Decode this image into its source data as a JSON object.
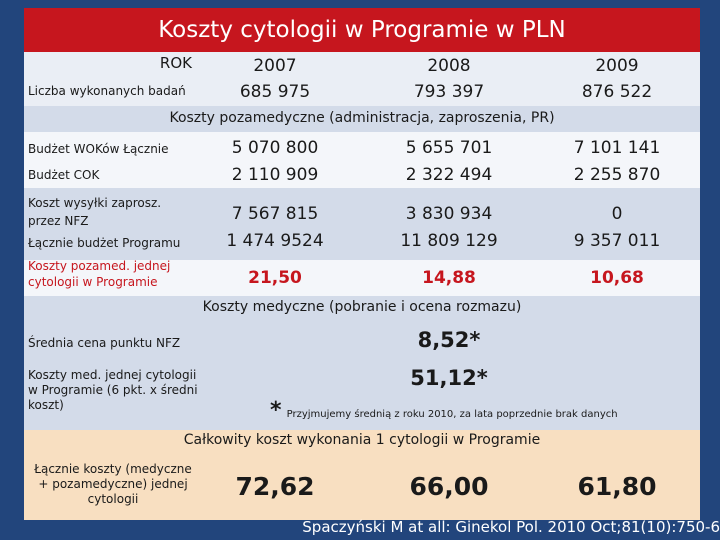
{
  "title": "Koszty cytologii w Programie w PLN",
  "header": {
    "rok_label": "ROK",
    "years": [
      "2007",
      "2008",
      "2009"
    ]
  },
  "liczba": {
    "label": "Liczba wykonanych badań",
    "values": [
      "685 975",
      "793 397",
      "876 522"
    ]
  },
  "section1_title": "Koszty pozamedyczne (administracja, zaproszenia, PR)",
  "rows": [
    {
      "label": "Budżet WOKów Łącznie",
      "values": [
        "5 070 800",
        "5 655 701",
        "7 101 141"
      ]
    },
    {
      "label": "Budżet COK",
      "values": [
        "2 110 909",
        "2 322 494",
        "2 255 870"
      ]
    },
    {
      "label": "Koszt wysyłki zaprosz. przez NFZ",
      "values": [
        "7 567 815",
        "3 830 934",
        "0"
      ]
    },
    {
      "label": "Łącznie budżet Programu",
      "values": [
        "1 474 9524",
        "11 809 129",
        "9 357 011"
      ]
    }
  ],
  "pozamed": {
    "label": "Koszty pozamed. jednej cytologii w Programie",
    "values": [
      "21,50",
      "14,88",
      "10,68"
    ]
  },
  "section2_title": "Koszty medyczne (pobranie i ocena rozmazu)",
  "srednia": {
    "label": "Średnia cena punktu NFZ",
    "value": "8,52*"
  },
  "med_jednej": {
    "label": "Koszty med. jednej cytologii w Programie (6 pkt. x średni koszt)",
    "value": "51,12*"
  },
  "note": {
    "star": "*",
    "text": "Przyjmujemy średnią z roku 2010, za lata poprzednie brak danych"
  },
  "section3_title": "Całkowity koszt wykonania 1 cytologii w Programie",
  "total": {
    "label": "Łącznie koszty (medyczne + pozamedyczne) jednej cytologii",
    "values": [
      "72,62",
      "66,00",
      "61,80"
    ]
  },
  "footer": "Spaczyński M at all: Ginekol Pol. 2010 Oct;81(10):750-6",
  "colors": {
    "title_bg": "#c6161e",
    "slide_bg": "#22457c",
    "highlight": "#c6161e"
  }
}
